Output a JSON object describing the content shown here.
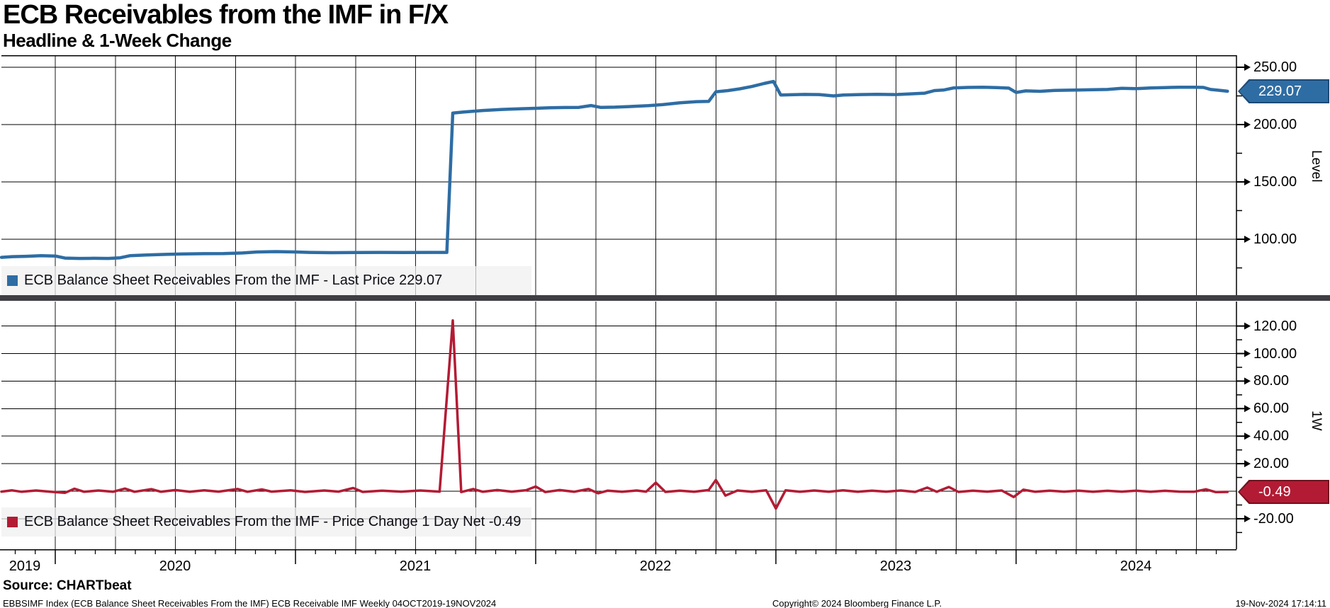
{
  "header": {
    "title": "ECB Receivables from the IMF in F/X",
    "subtitle": "Headline & 1-Week Change"
  },
  "level_panel": {
    "tick_labels": [
      "250.00",
      "200.00",
      "150.00",
      "100.00"
    ],
    "tick_values": [
      250,
      200,
      150,
      100
    ],
    "grid_values": [
      250,
      200,
      150,
      100
    ],
    "minor_tick_values": [
      225,
      175,
      125,
      75
    ],
    "last_price_label": "229.07",
    "tag_color": "#2e6da4",
    "tag_border_color": "#1c4a75"
  },
  "change_panel": {
    "tick_labels": [
      "120.00",
      "100.00",
      "80.00",
      "60.00",
      "40.00",
      "20.00",
      "-20.00"
    ],
    "tick_values": [
      120,
      100,
      80,
      60,
      40,
      20,
      -20
    ],
    "grid_values": [
      120,
      100,
      80,
      60,
      40,
      20,
      0,
      -20
    ],
    "minor_tick_values": [
      110,
      90,
      70,
      50,
      30,
      10,
      -10,
      -30
    ],
    "last_change_label": "-0.49",
    "tag_color": "#b31b34",
    "tag_border_color": "#70101f"
  },
  "x_axis": {
    "year_labels": [
      "2019",
      "2020",
      "2021",
      "2022",
      "2023",
      "2024"
    ]
  },
  "footer": {
    "source": "Source: CHARTbeat",
    "description": "EBBSIMF Index (ECB Balance Sheet Receivables From the IMF) ECB Receivable IMF  Weekly 04OCT2019-19NOV2024",
    "copyright": "Copyright© 2024 Bloomberg Finance L.P.",
    "timestamp": "19-Nov-2024 17:14:11"
  },
  "chart_data": [
    {
      "type": "line",
      "name": "level",
      "legend": "ECB Balance Sheet Receivables From the IMF - Last Price 229.07",
      "ylabel": "Level",
      "color": "#2e6da4",
      "ylim": [
        50,
        260
      ],
      "yticks": [
        250,
        200,
        150,
        100
      ],
      "x_range": [
        2019.76,
        2024.88
      ],
      "last_value": 229.07,
      "x": [
        2019.76,
        2019.82,
        2019.88,
        2019.94,
        2020.0,
        2020.04,
        2020.1,
        2020.16,
        2020.22,
        2020.27,
        2020.31,
        2020.38,
        2020.46,
        2020.54,
        2020.62,
        2020.7,
        2020.78,
        2020.84,
        2020.92,
        2021.0,
        2021.06,
        2021.15,
        2021.25,
        2021.35,
        2021.45,
        2021.55,
        2021.63,
        2021.655,
        2021.7,
        2021.78,
        2021.86,
        2021.94,
        2022.0,
        2022.06,
        2022.12,
        2022.18,
        2022.23,
        2022.27,
        2022.33,
        2022.4,
        2022.47,
        2022.53,
        2022.6,
        2022.67,
        2022.72,
        2022.75,
        2022.8,
        2022.85,
        2022.9,
        2022.95,
        2022.99,
        2023.02,
        2023.06,
        2023.12,
        2023.18,
        2023.24,
        2023.28,
        2023.35,
        2023.42,
        2023.5,
        2023.56,
        2023.62,
        2023.66,
        2023.7,
        2023.74,
        2023.8,
        2023.86,
        2023.92,
        2023.97,
        2024.0,
        2024.04,
        2024.1,
        2024.16,
        2024.22,
        2024.3,
        2024.38,
        2024.44,
        2024.5,
        2024.56,
        2024.62,
        2024.68,
        2024.74,
        2024.78,
        2024.81,
        2024.85,
        2024.88
      ],
      "y": [
        84.2,
        84.8,
        85.1,
        85.6,
        85.4,
        83.6,
        83.3,
        83.4,
        83.3,
        83.8,
        85.6,
        86.3,
        86.8,
        87.2,
        87.4,
        87.5,
        88.0,
        88.9,
        89.2,
        88.9,
        88.5,
        88.3,
        88.4,
        88.5,
        88.4,
        88.5,
        88.5,
        210.0,
        211.0,
        212.3,
        213.2,
        213.8,
        214.2,
        214.6,
        214.9,
        215.0,
        216.6,
        215.0,
        215.2,
        215.8,
        216.5,
        217.5,
        219.0,
        220.0,
        220.2,
        228.6,
        229.6,
        231.2,
        233.2,
        235.8,
        237.6,
        225.8,
        226.0,
        226.3,
        226.2,
        225.0,
        225.8,
        226.2,
        226.4,
        226.2,
        226.8,
        227.4,
        229.6,
        230.2,
        232.0,
        232.4,
        232.5,
        232.3,
        231.8,
        228.0,
        229.4,
        229.0,
        229.8,
        230.0,
        230.3,
        230.6,
        231.6,
        231.3,
        232.0,
        232.3,
        232.6,
        232.5,
        232.4,
        230.6,
        229.8,
        229.07
      ]
    },
    {
      "type": "line",
      "name": "1w_change",
      "legend": "ECB Balance Sheet Receivables From the IMF - Price Change 1 Day Net -0.49",
      "ylabel": "1W",
      "color": "#b31b34",
      "ylim": [
        -42,
        136
      ],
      "yticks": [
        120,
        100,
        80,
        60,
        40,
        20,
        0,
        -20
      ],
      "x_range": [
        2019.76,
        2024.88
      ],
      "last_value": -0.49,
      "x": [
        2019.76,
        2019.82,
        2019.86,
        2019.92,
        2019.98,
        2020.04,
        2020.08,
        2020.12,
        2020.18,
        2020.24,
        2020.29,
        2020.33,
        2020.4,
        2020.44,
        2020.5,
        2020.56,
        2020.62,
        2020.68,
        2020.76,
        2020.8,
        2020.86,
        2020.9,
        2020.98,
        2021.04,
        2021.12,
        2021.18,
        2021.24,
        2021.28,
        2021.36,
        2021.44,
        2021.52,
        2021.6,
        2021.655,
        2021.69,
        2021.74,
        2021.78,
        2021.84,
        2021.9,
        2021.96,
        2022.0,
        2022.04,
        2022.1,
        2022.16,
        2022.22,
        2022.26,
        2022.3,
        2022.36,
        2022.42,
        2022.46,
        2022.5,
        2022.54,
        2022.6,
        2022.66,
        2022.72,
        2022.75,
        2022.79,
        2022.84,
        2022.9,
        2022.96,
        2023.0,
        2023.04,
        2023.1,
        2023.16,
        2023.22,
        2023.28,
        2023.34,
        2023.4,
        2023.46,
        2023.52,
        2023.58,
        2023.63,
        2023.67,
        2023.72,
        2023.76,
        2023.82,
        2023.88,
        2023.94,
        2023.99,
        2024.03,
        2024.08,
        2024.14,
        2024.2,
        2024.26,
        2024.32,
        2024.38,
        2024.44,
        2024.5,
        2024.56,
        2024.62,
        2024.68,
        2024.74,
        2024.79,
        2024.83,
        2024.88
      ],
      "y": [
        -0.3,
        0.6,
        -0.4,
        0.5,
        -0.4,
        -1.2,
        1.8,
        -0.4,
        0.5,
        -0.4,
        1.9,
        -0.4,
        1.5,
        -0.4,
        0.8,
        -0.4,
        0.6,
        -0.3,
        1.6,
        -0.4,
        1.3,
        -0.3,
        0.6,
        -0.5,
        0.5,
        -0.3,
        2.3,
        -0.5,
        0.4,
        -0.3,
        0.5,
        -0.3,
        124.0,
        -0.6,
        1.6,
        -0.4,
        0.8,
        -0.3,
        0.7,
        3.4,
        -0.6,
        0.8,
        -0.4,
        1.6,
        -1.5,
        0.4,
        -0.4,
        0.5,
        -0.3,
        6.2,
        -0.5,
        0.4,
        -0.4,
        0.8,
        8.2,
        -3.2,
        0.5,
        -0.4,
        0.6,
        -12.6,
        0.6,
        -0.4,
        0.5,
        -0.4,
        0.6,
        -0.4,
        0.4,
        -0.3,
        0.5,
        -0.5,
        2.6,
        -0.4,
        3.1,
        -0.5,
        0.4,
        -0.3,
        0.5,
        -4.2,
        1.1,
        -0.4,
        0.4,
        -0.3,
        0.4,
        -0.4,
        0.3,
        -0.3,
        0.4,
        -0.4,
        0.3,
        -0.3,
        -0.4,
        1.4,
        -0.6,
        -0.49
      ]
    }
  ]
}
